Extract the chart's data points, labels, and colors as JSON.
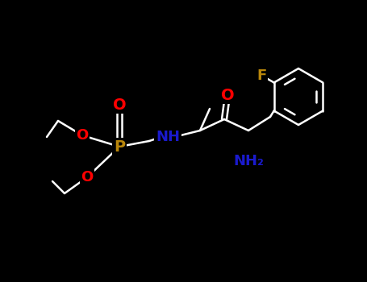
{
  "bg": "#000000",
  "bond_color": "#ffffff",
  "bond_lw": 1.8,
  "atom_colors": {
    "O": "#FF0000",
    "N": "#1a1acd",
    "P": "#b8860b",
    "F": "#b8860b",
    "C": "#ffffff"
  },
  "font_size": 13,
  "font_bold": true
}
